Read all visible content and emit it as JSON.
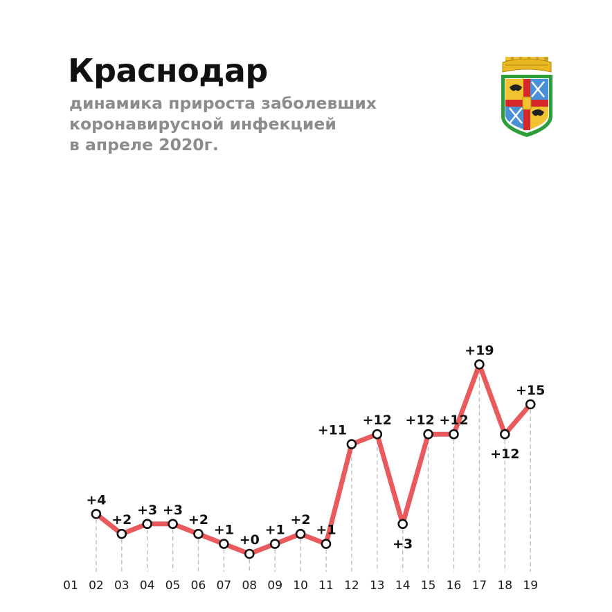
{
  "header": {
    "title": "Краснодар",
    "subtitle_lines": [
      "динамика прироста заболевших",
      "коронавирусной инфекцией",
      "в апреле 2020г."
    ]
  },
  "colors": {
    "line": "#e85a5c",
    "title": "#111111",
    "subtitle": "#8c8c8c",
    "gridline": "#bdbdbd"
  },
  "chart_data": {
    "type": "line",
    "title": "Краснодар",
    "subtitle": "динамика прироста заболевших коронавирусной инфекцией в апреле 2020г.",
    "categories": [
      "01",
      "02",
      "03",
      "04",
      "05",
      "06",
      "07",
      "08",
      "09",
      "10",
      "11",
      "12",
      "13",
      "14",
      "15",
      "16",
      "17",
      "18",
      "19"
    ],
    "series": [
      {
        "x": [
          "02",
          "03",
          "04",
          "05",
          "06",
          "07",
          "08",
          "09",
          "10",
          "11",
          "12",
          "13",
          "14",
          "15",
          "16",
          "17",
          "18",
          "19"
        ],
        "values": [
          4,
          2,
          3,
          3,
          2,
          1,
          0,
          1,
          2,
          1,
          11,
          12,
          3,
          12,
          12,
          19,
          12,
          15
        ],
        "labels": [
          "+4",
          "+2",
          "+3",
          "+3",
          "+2",
          "+1",
          "+0",
          "+1",
          "+2",
          "+1",
          "+11",
          "+12",
          "+3",
          "+12",
          "+12",
          "+19",
          "+12",
          "+15"
        ]
      }
    ],
    "xlabel": "",
    "ylabel": "",
    "grid": "vertical dashed drop lines",
    "legend": "none"
  }
}
